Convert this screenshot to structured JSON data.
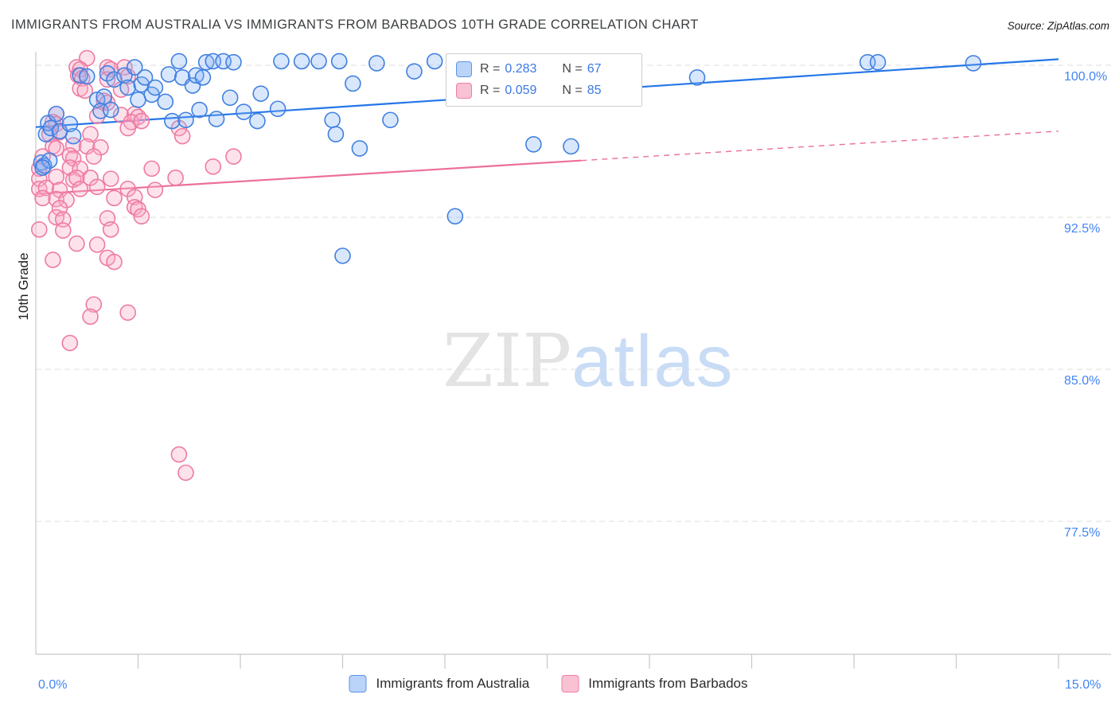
{
  "header": {
    "title": "IMMIGRANTS FROM AUSTRALIA VS IMMIGRANTS FROM BARBADOS 10TH GRADE CORRELATION CHART",
    "source": "Source: ZipAtlas.com"
  },
  "watermark": {
    "part1": "ZIP",
    "part2": "atlas"
  },
  "chart_data": {
    "type": "scatter",
    "title": "Immigrants from Australia vs Immigrants from Barbados 10th Grade correlation",
    "xlabel": "",
    "ylabel": "10th Grade",
    "x_axis": {
      "min": 0,
      "max": 15,
      "tick_step_pct": 1.5,
      "label_min": "0.0%",
      "label_max": "15.0%"
    },
    "y_axis": {
      "ticks": [
        100.0,
        92.5,
        85.0,
        77.5
      ],
      "tick_labels": [
        "100.0%",
        "92.5%",
        "85.0%",
        "77.5%"
      ],
      "min": 71,
      "max": 101
    },
    "grid": "horizontal-dashed",
    "legend_position": "bottom-center",
    "legend_box": {
      "rows": [
        {
          "series": "Immigrants from Australia",
          "r_label": "R =",
          "r_value": "0.283",
          "n_label": "N =",
          "n_value": "67"
        },
        {
          "series": "Immigrants from Barbados",
          "r_label": "R =",
          "r_value": "0.059",
          "n_label": "N =",
          "n_value": "85"
        }
      ]
    },
    "series": [
      {
        "name": "Immigrants from Australia",
        "R": 0.283,
        "N": 67,
        "stroke": "#4080e0",
        "fill": "rgba(130,175,245,0.30)",
        "trend_color": "#2476e8",
        "trend": {
          "solid": [
            [
              0,
              96.95
            ],
            [
              15,
              100.3
            ]
          ]
        },
        "points": [
          [
            0.08,
            95.2
          ],
          [
            0.12,
            95.05
          ],
          [
            0.15,
            96.6
          ],
          [
            0.18,
            97.15
          ],
          [
            0.22,
            96.9
          ],
          [
            0.3,
            97.6
          ],
          [
            0.35,
            96.75
          ],
          [
            0.5,
            97.1
          ],
          [
            0.55,
            96.5
          ],
          [
            0.65,
            99.5
          ],
          [
            0.75,
            99.45
          ],
          [
            0.9,
            98.3
          ],
          [
            0.95,
            97.75
          ],
          [
            1.0,
            98.45
          ],
          [
            1.05,
            99.6
          ],
          [
            1.1,
            97.8
          ],
          [
            1.15,
            99.3
          ],
          [
            1.3,
            99.5
          ],
          [
            1.35,
            98.9
          ],
          [
            1.45,
            99.9
          ],
          [
            1.5,
            98.3
          ],
          [
            1.55,
            99.05
          ],
          [
            1.6,
            99.4
          ],
          [
            1.7,
            98.55
          ],
          [
            1.75,
            98.9
          ],
          [
            1.9,
            98.2
          ],
          [
            1.95,
            99.55
          ],
          [
            2.0,
            97.25
          ],
          [
            2.1,
            100.2
          ],
          [
            2.15,
            99.4
          ],
          [
            2.2,
            97.3
          ],
          [
            2.3,
            99.0
          ],
          [
            2.35,
            99.5
          ],
          [
            2.45,
            99.4
          ],
          [
            2.5,
            100.15
          ],
          [
            2.6,
            100.2
          ],
          [
            2.65,
            97.35
          ],
          [
            2.75,
            100.2
          ],
          [
            2.85,
            98.4
          ],
          [
            2.9,
            100.15
          ],
          [
            3.05,
            97.7
          ],
          [
            3.25,
            97.25
          ],
          [
            3.3,
            98.6
          ],
          [
            3.55,
            97.85
          ],
          [
            3.6,
            100.2
          ],
          [
            3.9,
            100.2
          ],
          [
            4.15,
            100.2
          ],
          [
            4.35,
            97.3
          ],
          [
            4.4,
            96.6
          ],
          [
            4.45,
            100.2
          ],
          [
            4.5,
            90.6
          ],
          [
            4.65,
            99.1
          ],
          [
            4.75,
            95.9
          ],
          [
            5.0,
            100.1
          ],
          [
            5.2,
            97.3
          ],
          [
            5.55,
            99.7
          ],
          [
            5.85,
            100.2
          ],
          [
            6.15,
            92.55
          ],
          [
            7.3,
            96.1
          ],
          [
            7.85,
            96.0
          ],
          [
            9.7,
            99.4
          ],
          [
            12.2,
            100.15
          ],
          [
            12.35,
            100.15
          ],
          [
            13.75,
            100.1
          ],
          [
            2.4,
            97.8
          ],
          [
            0.2,
            95.3
          ],
          [
            0.1,
            94.95
          ]
        ]
      },
      {
        "name": "Immigrants from Barbados",
        "R": 0.059,
        "N": 85,
        "stroke": "#ee7aa2",
        "fill": "rgba(248,173,197,0.35)",
        "trend_color": "#ec6f9c",
        "trend": {
          "solid": [
            [
              0,
              93.65
            ],
            [
              8,
              95.3
            ]
          ],
          "dashed": [
            [
              8,
              95.3
            ],
            [
              15,
              96.75
            ]
          ]
        },
        "points": [
          [
            0.75,
            100.35
          ],
          [
            0.6,
            99.9
          ],
          [
            0.65,
            99.8
          ],
          [
            1.05,
            99.9
          ],
          [
            1.1,
            99.8
          ],
          [
            1.3,
            99.9
          ],
          [
            0.62,
            99.5
          ],
          [
            0.68,
            99.35
          ],
          [
            1.05,
            99.3
          ],
          [
            1.35,
            99.45
          ],
          [
            0.65,
            98.85
          ],
          [
            0.72,
            98.75
          ],
          [
            1.25,
            98.8
          ],
          [
            1.0,
            98.25
          ],
          [
            1.05,
            98.15
          ],
          [
            0.3,
            97.6
          ],
          [
            0.9,
            97.5
          ],
          [
            1.25,
            97.55
          ],
          [
            1.45,
            97.6
          ],
          [
            1.5,
            97.45
          ],
          [
            0.25,
            97.2
          ],
          [
            0.3,
            97.1
          ],
          [
            1.4,
            97.2
          ],
          [
            1.55,
            97.25
          ],
          [
            0.2,
            96.6
          ],
          [
            0.35,
            96.7
          ],
          [
            0.8,
            96.6
          ],
          [
            1.35,
            96.9
          ],
          [
            2.1,
            96.9
          ],
          [
            2.15,
            96.5
          ],
          [
            0.25,
            96.0
          ],
          [
            0.3,
            95.9
          ],
          [
            0.55,
            96.05
          ],
          [
            0.75,
            96.0
          ],
          [
            0.95,
            95.95
          ],
          [
            0.1,
            95.5
          ],
          [
            0.5,
            95.55
          ],
          [
            0.55,
            95.4
          ],
          [
            0.85,
            95.5
          ],
          [
            2.9,
            95.5
          ],
          [
            0.05,
            94.9
          ],
          [
            0.5,
            94.95
          ],
          [
            0.65,
            94.9
          ],
          [
            1.7,
            94.9
          ],
          [
            2.6,
            95.0
          ],
          [
            0.05,
            94.4
          ],
          [
            0.3,
            94.5
          ],
          [
            0.55,
            94.35
          ],
          [
            0.6,
            94.45
          ],
          [
            0.8,
            94.45
          ],
          [
            1.1,
            94.4
          ],
          [
            2.05,
            94.45
          ],
          [
            0.05,
            93.9
          ],
          [
            0.15,
            93.95
          ],
          [
            0.35,
            93.85
          ],
          [
            0.65,
            93.9
          ],
          [
            0.9,
            94.0
          ],
          [
            1.35,
            93.9
          ],
          [
            1.75,
            93.85
          ],
          [
            0.1,
            93.45
          ],
          [
            0.3,
            93.4
          ],
          [
            0.45,
            93.35
          ],
          [
            1.15,
            93.45
          ],
          [
            1.45,
            93.5
          ],
          [
            0.35,
            92.95
          ],
          [
            1.45,
            93.0
          ],
          [
            1.5,
            92.9
          ],
          [
            0.3,
            92.5
          ],
          [
            0.4,
            92.4
          ],
          [
            1.05,
            92.45
          ],
          [
            1.55,
            92.55
          ],
          [
            0.05,
            91.9
          ],
          [
            0.4,
            91.85
          ],
          [
            1.1,
            91.9
          ],
          [
            0.6,
            91.2
          ],
          [
            0.9,
            91.15
          ],
          [
            0.25,
            90.4
          ],
          [
            1.05,
            90.5
          ],
          [
            1.15,
            90.3
          ],
          [
            0.85,
            88.2
          ],
          [
            0.8,
            87.6
          ],
          [
            1.35,
            87.8
          ],
          [
            0.5,
            86.3
          ],
          [
            2.1,
            80.8
          ],
          [
            2.2,
            79.9
          ]
        ]
      }
    ]
  },
  "colors": {
    "accent_blue": "#4285f4",
    "accent_pink": "#ee7aa2",
    "grid": "#dcdcdc",
    "axis": "#c8c8c8"
  }
}
